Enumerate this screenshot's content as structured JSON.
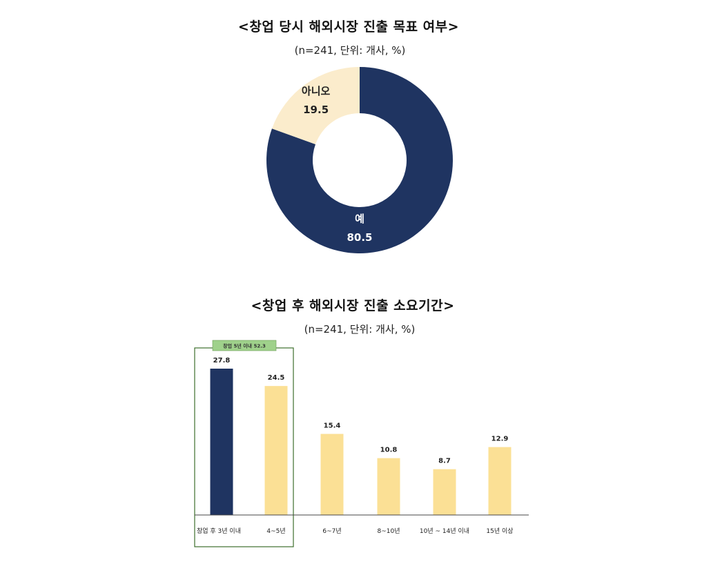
{
  "chart_data": [
    {
      "type": "pie",
      "title": "<창업 당시 해외시장 진출 목표 여부>",
      "subtitle": "(n=241, 단위: 개사, %)",
      "categories": [
        "예",
        "아니오"
      ],
      "values": [
        80.5,
        19.5
      ],
      "value_labels": [
        "80.5",
        "19.5"
      ],
      "colors": [
        "#1f3461",
        "#fbeccc"
      ],
      "style": "donut"
    },
    {
      "type": "bar",
      "title": "<창업 후 해외시장 진출 소요기간>",
      "subtitle": "(n=241, 단위: 개사, %)",
      "categories": [
        "창업 후 3년 이내",
        "4~5년",
        "6~7년",
        "8~10년",
        "10년 ~ 14년 이내",
        "15년 이상"
      ],
      "values": [
        27.8,
        24.5,
        15.4,
        10.8,
        8.7,
        12.9
      ],
      "value_labels": [
        "27.8",
        "24.5",
        "15.4",
        "10.8",
        "8.7",
        "12.9"
      ],
      "colors": [
        "#1f3461",
        "#fbe095",
        "#fbe095",
        "#fbe095",
        "#fbe095",
        "#fbe095"
      ],
      "annotation": "창업 5년 이내 52.3",
      "annotation_color": "#9fd18b",
      "ylim": [
        0,
        30
      ],
      "grid": false
    }
  ]
}
